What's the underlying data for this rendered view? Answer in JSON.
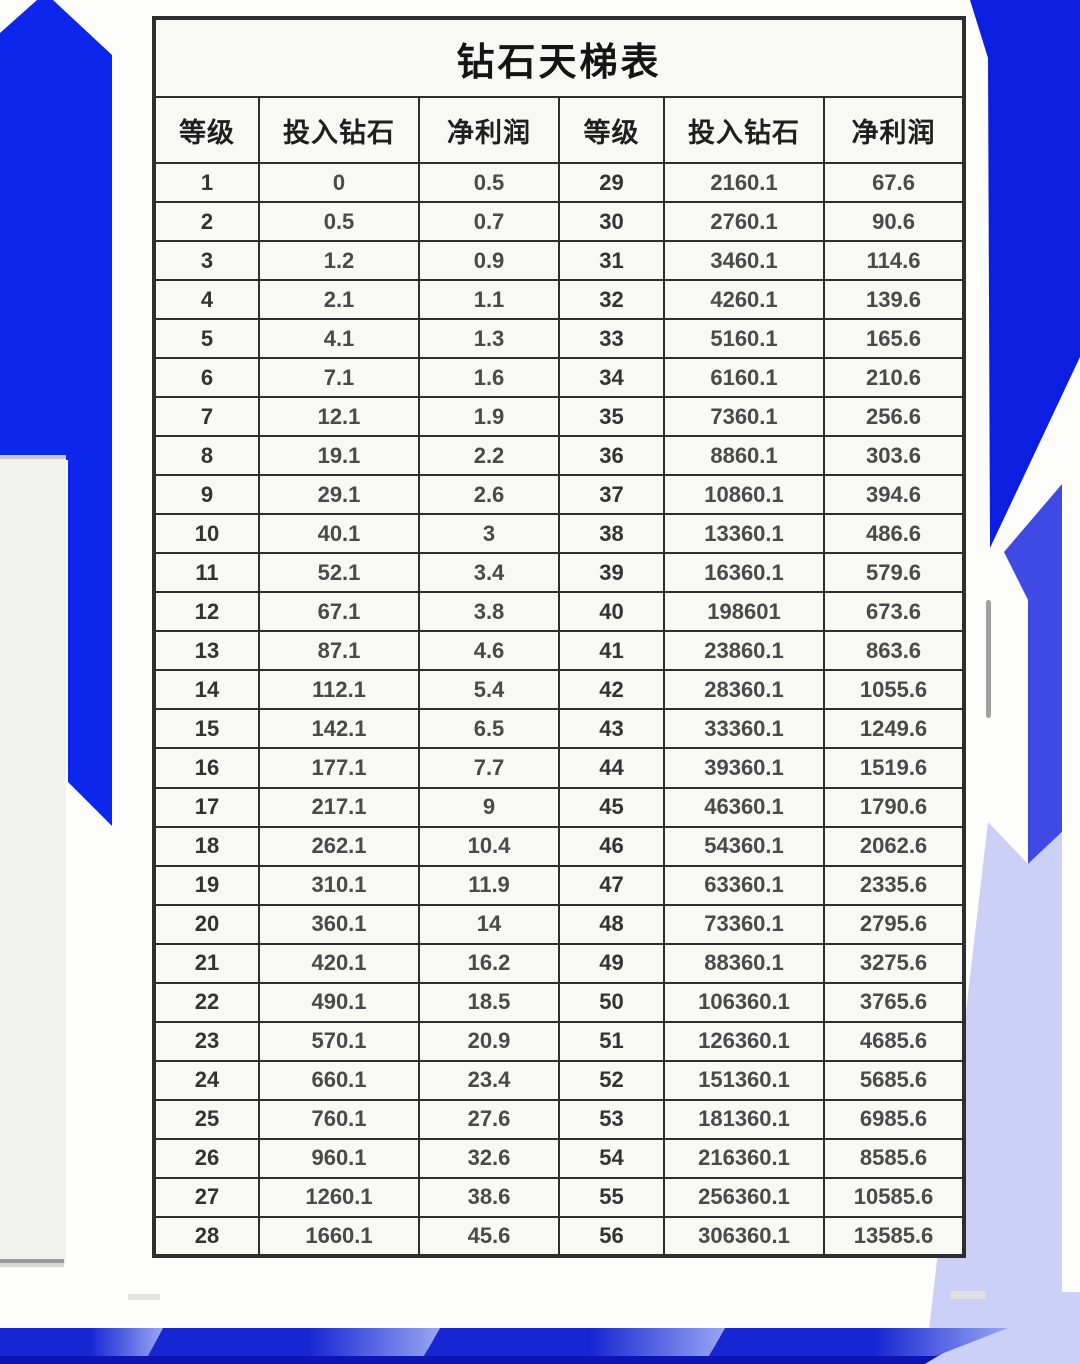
{
  "colors": {
    "page_bg": "#fdfdfb",
    "primary_blue": "#0c26ec",
    "right_blue": "#0c1fe0",
    "medium_blue": "#3f4ae4",
    "lavender": "#ccd0f6",
    "navy_strip": "#0d16b4",
    "band_grad_dark": "#1626d2",
    "band_grad_light": "#98a6f4",
    "card_bg": "#f1f1ee",
    "card_edge_gray": "#c9c9cc",
    "accent_gray": "#a0a0a0",
    "table_line": "#2e2e2e",
    "table_bg": "#f8f8f5"
  },
  "table": {
    "title": "钻石天梯表",
    "headers": [
      "等级",
      "投入钻石",
      "净利润",
      "等级",
      "投入钻石",
      "净利润"
    ],
    "rows": [
      [
        "1",
        "0",
        "0.5",
        "29",
        "2160.1",
        "67.6"
      ],
      [
        "2",
        "0.5",
        "0.7",
        "30",
        "2760.1",
        "90.6"
      ],
      [
        "3",
        "1.2",
        "0.9",
        "31",
        "3460.1",
        "114.6"
      ],
      [
        "4",
        "2.1",
        "1.1",
        "32",
        "4260.1",
        "139.6"
      ],
      [
        "5",
        "4.1",
        "1.3",
        "33",
        "5160.1",
        "165.6"
      ],
      [
        "6",
        "7.1",
        "1.6",
        "34",
        "6160.1",
        "210.6"
      ],
      [
        "7",
        "12.1",
        "1.9",
        "35",
        "7360.1",
        "256.6"
      ],
      [
        "8",
        "19.1",
        "2.2",
        "36",
        "8860.1",
        "303.6"
      ],
      [
        "9",
        "29.1",
        "2.6",
        "37",
        "10860.1",
        "394.6"
      ],
      [
        "10",
        "40.1",
        "3",
        "38",
        "13360.1",
        "486.6"
      ],
      [
        "11",
        "52.1",
        "3.4",
        "39",
        "16360.1",
        "579.6"
      ],
      [
        "12",
        "67.1",
        "3.8",
        "40",
        "198601",
        "673.6"
      ],
      [
        "13",
        "87.1",
        "4.6",
        "41",
        "23860.1",
        "863.6"
      ],
      [
        "14",
        "112.1",
        "5.4",
        "42",
        "28360.1",
        "1055.6"
      ],
      [
        "15",
        "142.1",
        "6.5",
        "43",
        "33360.1",
        "1249.6"
      ],
      [
        "16",
        "177.1",
        "7.7",
        "44",
        "39360.1",
        "1519.6"
      ],
      [
        "17",
        "217.1",
        "9",
        "45",
        "46360.1",
        "1790.6"
      ],
      [
        "18",
        "262.1",
        "10.4",
        "46",
        "54360.1",
        "2062.6"
      ],
      [
        "19",
        "310.1",
        "11.9",
        "47",
        "63360.1",
        "2335.6"
      ],
      [
        "20",
        "360.1",
        "14",
        "48",
        "73360.1",
        "2795.6"
      ],
      [
        "21",
        "420.1",
        "16.2",
        "49",
        "88360.1",
        "3275.6"
      ],
      [
        "22",
        "490.1",
        "18.5",
        "50",
        "106360.1",
        "3765.6"
      ],
      [
        "23",
        "570.1",
        "20.9",
        "51",
        "126360.1",
        "4685.6"
      ],
      [
        "24",
        "660.1",
        "23.4",
        "52",
        "151360.1",
        "5685.6"
      ],
      [
        "25",
        "760.1",
        "27.6",
        "53",
        "181360.1",
        "6985.6"
      ],
      [
        "26",
        "960.1",
        "32.6",
        "54",
        "216360.1",
        "8585.6"
      ],
      [
        "27",
        "1260.1",
        "38.6",
        "55",
        "256360.1",
        "10585.6"
      ],
      [
        "28",
        "1660.1",
        "45.6",
        "56",
        "306360.1",
        "13585.6"
      ]
    ]
  }
}
